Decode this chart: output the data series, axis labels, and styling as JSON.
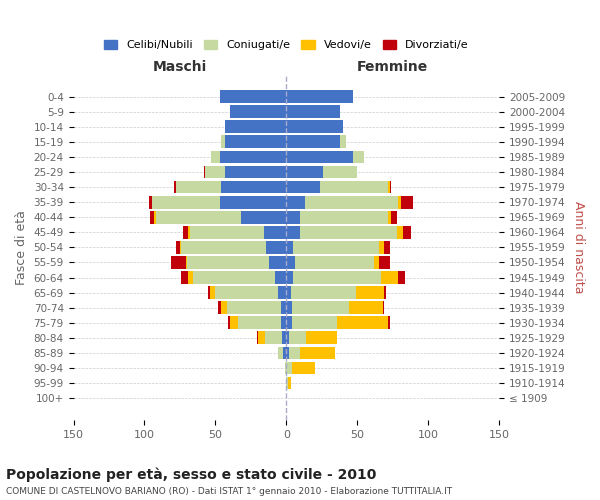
{
  "age_groups": [
    "100+",
    "95-99",
    "90-94",
    "85-89",
    "80-84",
    "75-79",
    "70-74",
    "65-69",
    "60-64",
    "55-59",
    "50-54",
    "45-49",
    "40-44",
    "35-39",
    "30-34",
    "25-29",
    "20-24",
    "15-19",
    "10-14",
    "5-9",
    "0-4"
  ],
  "birth_years": [
    "≤ 1909",
    "1910-1914",
    "1915-1919",
    "1920-1924",
    "1925-1929",
    "1930-1934",
    "1935-1939",
    "1940-1944",
    "1945-1949",
    "1950-1954",
    "1955-1959",
    "1960-1964",
    "1965-1969",
    "1970-1974",
    "1975-1979",
    "1980-1984",
    "1985-1989",
    "1990-1994",
    "1995-1999",
    "2000-2004",
    "2005-2009"
  ],
  "maschi": {
    "celibi": [
      0,
      0,
      0,
      2,
      3,
      4,
      4,
      6,
      8,
      12,
      14,
      16,
      32,
      47,
      46,
      43,
      47,
      43,
      43,
      40,
      47
    ],
    "coniugati": [
      0,
      0,
      1,
      4,
      12,
      30,
      38,
      44,
      58,
      58,
      60,
      52,
      60,
      48,
      32,
      14,
      6,
      3,
      0,
      0,
      0
    ],
    "vedovi": [
      0,
      0,
      0,
      0,
      5,
      6,
      4,
      4,
      3,
      1,
      1,
      1,
      1,
      0,
      0,
      0,
      0,
      0,
      0,
      0,
      0
    ],
    "divorziati": [
      0,
      0,
      0,
      0,
      1,
      1,
      2,
      1,
      5,
      10,
      3,
      4,
      3,
      2,
      1,
      1,
      0,
      0,
      0,
      0,
      0
    ]
  },
  "femmine": {
    "nubili": [
      0,
      0,
      0,
      2,
      2,
      4,
      4,
      3,
      5,
      6,
      5,
      10,
      10,
      13,
      24,
      26,
      47,
      38,
      40,
      38,
      47
    ],
    "coniugate": [
      0,
      1,
      4,
      8,
      12,
      32,
      40,
      46,
      62,
      56,
      60,
      68,
      62,
      66,
      48,
      24,
      8,
      4,
      0,
      0,
      0
    ],
    "vedove": [
      0,
      2,
      16,
      24,
      22,
      36,
      24,
      20,
      12,
      3,
      4,
      4,
      2,
      2,
      1,
      0,
      0,
      0,
      0,
      0,
      0
    ],
    "divorziate": [
      0,
      0,
      0,
      0,
      0,
      1,
      1,
      1,
      5,
      8,
      4,
      6,
      4,
      8,
      1,
      0,
      0,
      0,
      0,
      0,
      0
    ]
  },
  "colors": {
    "celibi_nubili": "#4472c4",
    "coniugati_e": "#c5d9a0",
    "vedovi_e": "#ffc000",
    "divorziati_e": "#c0000b"
  },
  "title": "Popolazione per età, sesso e stato civile - 2010",
  "subtitle": "COMUNE DI CASTELNOVO BARIANO (RO) - Dati ISTAT 1° gennaio 2010 - Elaborazione TUTTITALIA.IT",
  "xlabel_left": "Maschi",
  "xlabel_right": "Femmine",
  "ylabel_left": "Fasce di età",
  "ylabel_right": "Anni di nascita",
  "xlim": 150,
  "background_color": "#ffffff",
  "grid_color": "#cccccc"
}
